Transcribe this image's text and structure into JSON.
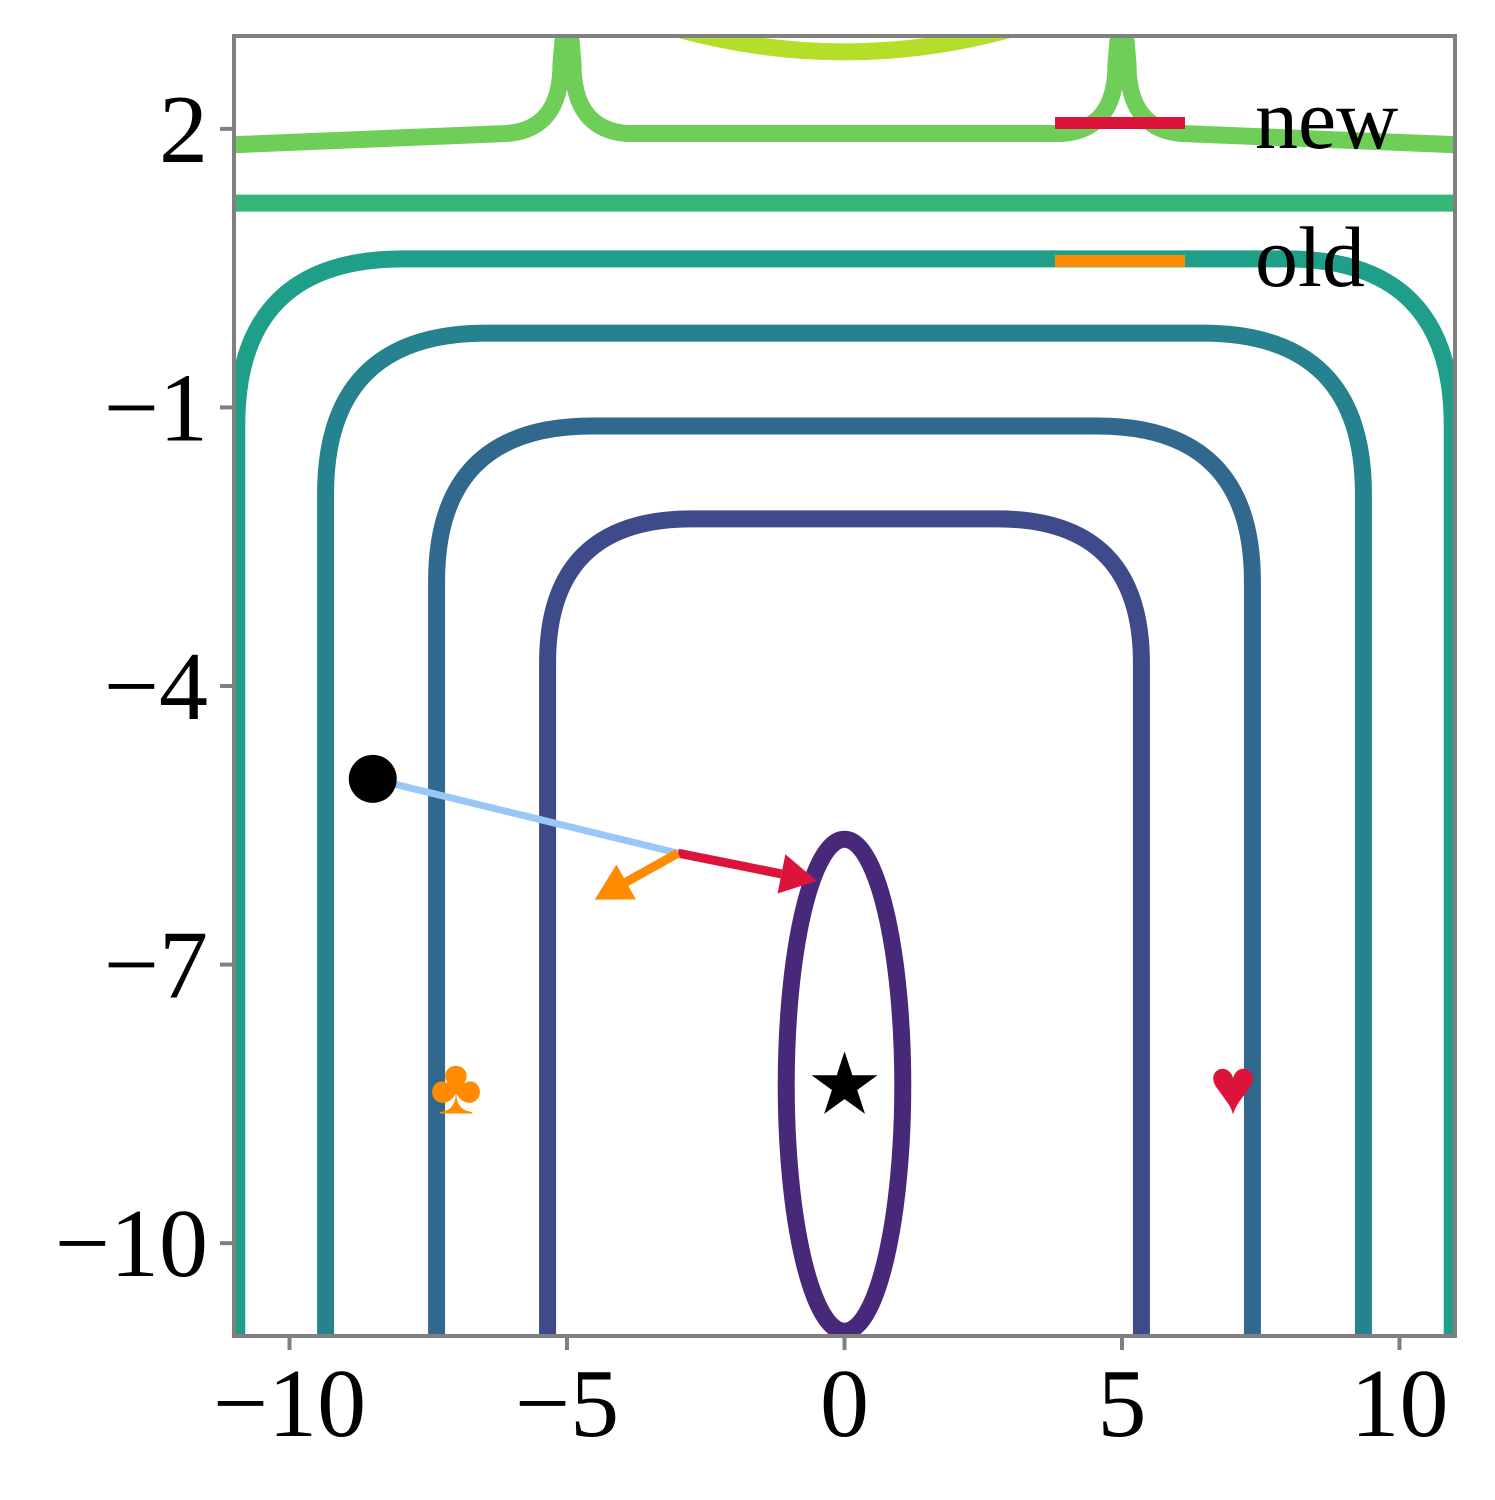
{
  "chart_data": {
    "type": "contour",
    "title": "",
    "xlabel": "",
    "ylabel": "",
    "xlim": [
      -11,
      11
    ],
    "ylim": [
      -11,
      3
    ],
    "grid": false,
    "x_ticks": [
      {
        "value": -10,
        "label": "−10"
      },
      {
        "value": -5,
        "label": "−5"
      },
      {
        "value": 0,
        "label": "0"
      },
      {
        "value": 5,
        "label": "5"
      },
      {
        "value": 10,
        "label": "10"
      }
    ],
    "y_ticks": [
      {
        "value": 2,
        "label": "2"
      },
      {
        "value": -1,
        "label": "−1"
      },
      {
        "value": -4,
        "label": "−4"
      },
      {
        "value": -7,
        "label": "−7"
      },
      {
        "value": -10,
        "label": "−10"
      }
    ],
    "contour_levels": [
      {
        "type": "ellipse",
        "cx": 0,
        "cy": -8.3,
        "rx": 1.05,
        "ry": 2.65,
        "color": "#482878"
      },
      {
        "type": "u",
        "x_half_width": 5.35,
        "top_y": -2.2,
        "radius": 2.6,
        "color": "#3e4a89"
      },
      {
        "type": "u",
        "x_half_width": 7.35,
        "top_y": -1.2,
        "radius": 2.8,
        "color": "#31688e"
      },
      {
        "type": "u",
        "x_half_width": 9.35,
        "top_y": -0.2,
        "radius": 2.9,
        "color": "#26828e"
      },
      {
        "type": "u",
        "x_half_width": 10.95,
        "top_y": 0.6,
        "radius": 3.0,
        "color": "#1f9e89"
      },
      {
        "type": "hline",
        "y": 1.2,
        "color": "#35b779"
      },
      {
        "type": "cusp",
        "base_y": 1.95,
        "cusp_x": [
          -5,
          5
        ],
        "color": "#6ece58"
      },
      {
        "type": "arcs",
        "base_y": 3.15,
        "color": "#b5de2b"
      }
    ],
    "path": {
      "start": [
        -8.5,
        -5.0
      ],
      "end": [
        -3.0,
        -5.8
      ],
      "color": "#99c8f7",
      "start_marker": "circle",
      "start_color": "#000000"
    },
    "arrows": [
      {
        "name": "new",
        "from": [
          -3.0,
          -5.8
        ],
        "to": [
          -0.5,
          -6.1
        ],
        "color": "#dc143c"
      },
      {
        "name": "old",
        "from": [
          -3.0,
          -5.8
        ],
        "to": [
          -4.5,
          -6.3
        ],
        "color": "#ff8c00"
      }
    ],
    "markers": [
      {
        "symbol": "★",
        "x": 0,
        "y": -8.3,
        "color": "#000000"
      },
      {
        "symbol": "♣",
        "x": -7,
        "y": -8.3,
        "color": "#ff8c00"
      },
      {
        "symbol": "♥",
        "x": 7,
        "y": -8.3,
        "color": "#dc143c"
      }
    ],
    "legend": {
      "placement": "top-right",
      "entries": [
        {
          "label": "new",
          "color": "#dc143c"
        },
        {
          "label": "old",
          "color": "#ff8c00"
        }
      ]
    }
  }
}
